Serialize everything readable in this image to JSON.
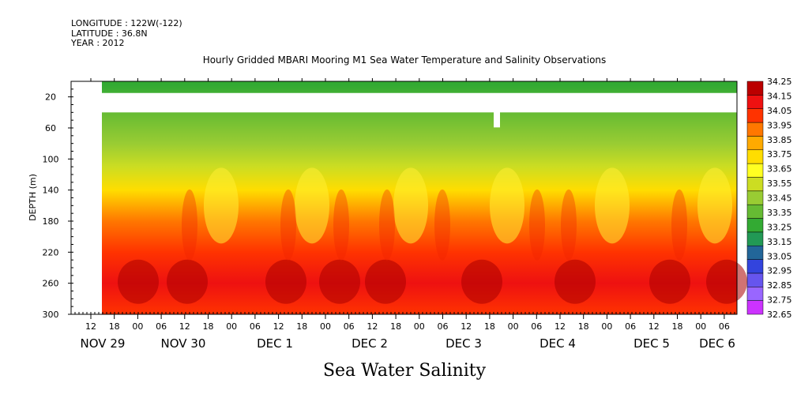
{
  "header": {
    "longitude": "LONGITUDE : 122W(-122)",
    "latitude": "LATITUDE : 36.8N",
    "year": "YEAR : 2012"
  },
  "chart_data": {
    "type": "heatmap",
    "title": "Hourly Gridded MBARI Mooring M1 Sea Water Temperature and Salinity Observations",
    "xlabel": "Sea Water Salinity",
    "ylabel": "DEPTH (m)",
    "ylim": [
      300,
      0
    ],
    "y_ticks": [
      20,
      60,
      100,
      140,
      180,
      220,
      260,
      300
    ],
    "x_hour_ticks": [
      "12",
      "18",
      "00",
      "06",
      "12",
      "18",
      "00",
      "06",
      "12",
      "18",
      "00",
      "06",
      "12",
      "18",
      "00",
      "06",
      "12",
      "18",
      "00",
      "06",
      "12",
      "18",
      "00",
      "06",
      "12",
      "18",
      "00",
      "06"
    ],
    "x_date_labels": [
      "NOV 29",
      "NOV 30",
      "DEC  1",
      "DEC  2",
      "DEC  3",
      "DEC  4",
      "DEC  5",
      "DEC  6"
    ],
    "colorbar_levels": [
      32.65,
      32.75,
      32.85,
      32.95,
      33.05,
      33.15,
      33.25,
      33.35,
      33.45,
      33.55,
      33.65,
      33.75,
      33.85,
      33.95,
      34.05,
      34.15,
      34.25
    ],
    "colorbar_colors": [
      "#cc33ff",
      "#9966ff",
      "#6655ee",
      "#3344dd",
      "#226699",
      "#229955",
      "#33aa33",
      "#66bb33",
      "#99cc33",
      "#ccdd22",
      "#ffff22",
      "#ffdd00",
      "#ffaa00",
      "#ff7700",
      "#ff3300",
      "#ee1111",
      "#bb0000"
    ],
    "salinity_profile": [
      {
        "depth": 5,
        "value": 33.33
      },
      {
        "depth": 40,
        "value": 33.35
      },
      {
        "depth": 80,
        "value": 33.45
      },
      {
        "depth": 110,
        "value": 33.6
      },
      {
        "depth": 140,
        "value": 33.8
      },
      {
        "depth": 180,
        "value": 33.95
      },
      {
        "depth": 220,
        "value": 34.08
      },
      {
        "depth": 260,
        "value": 34.2
      },
      {
        "depth": 300,
        "value": 34.12
      }
    ],
    "no_data_depth_range": [
      15,
      40
    ],
    "grid": false
  }
}
